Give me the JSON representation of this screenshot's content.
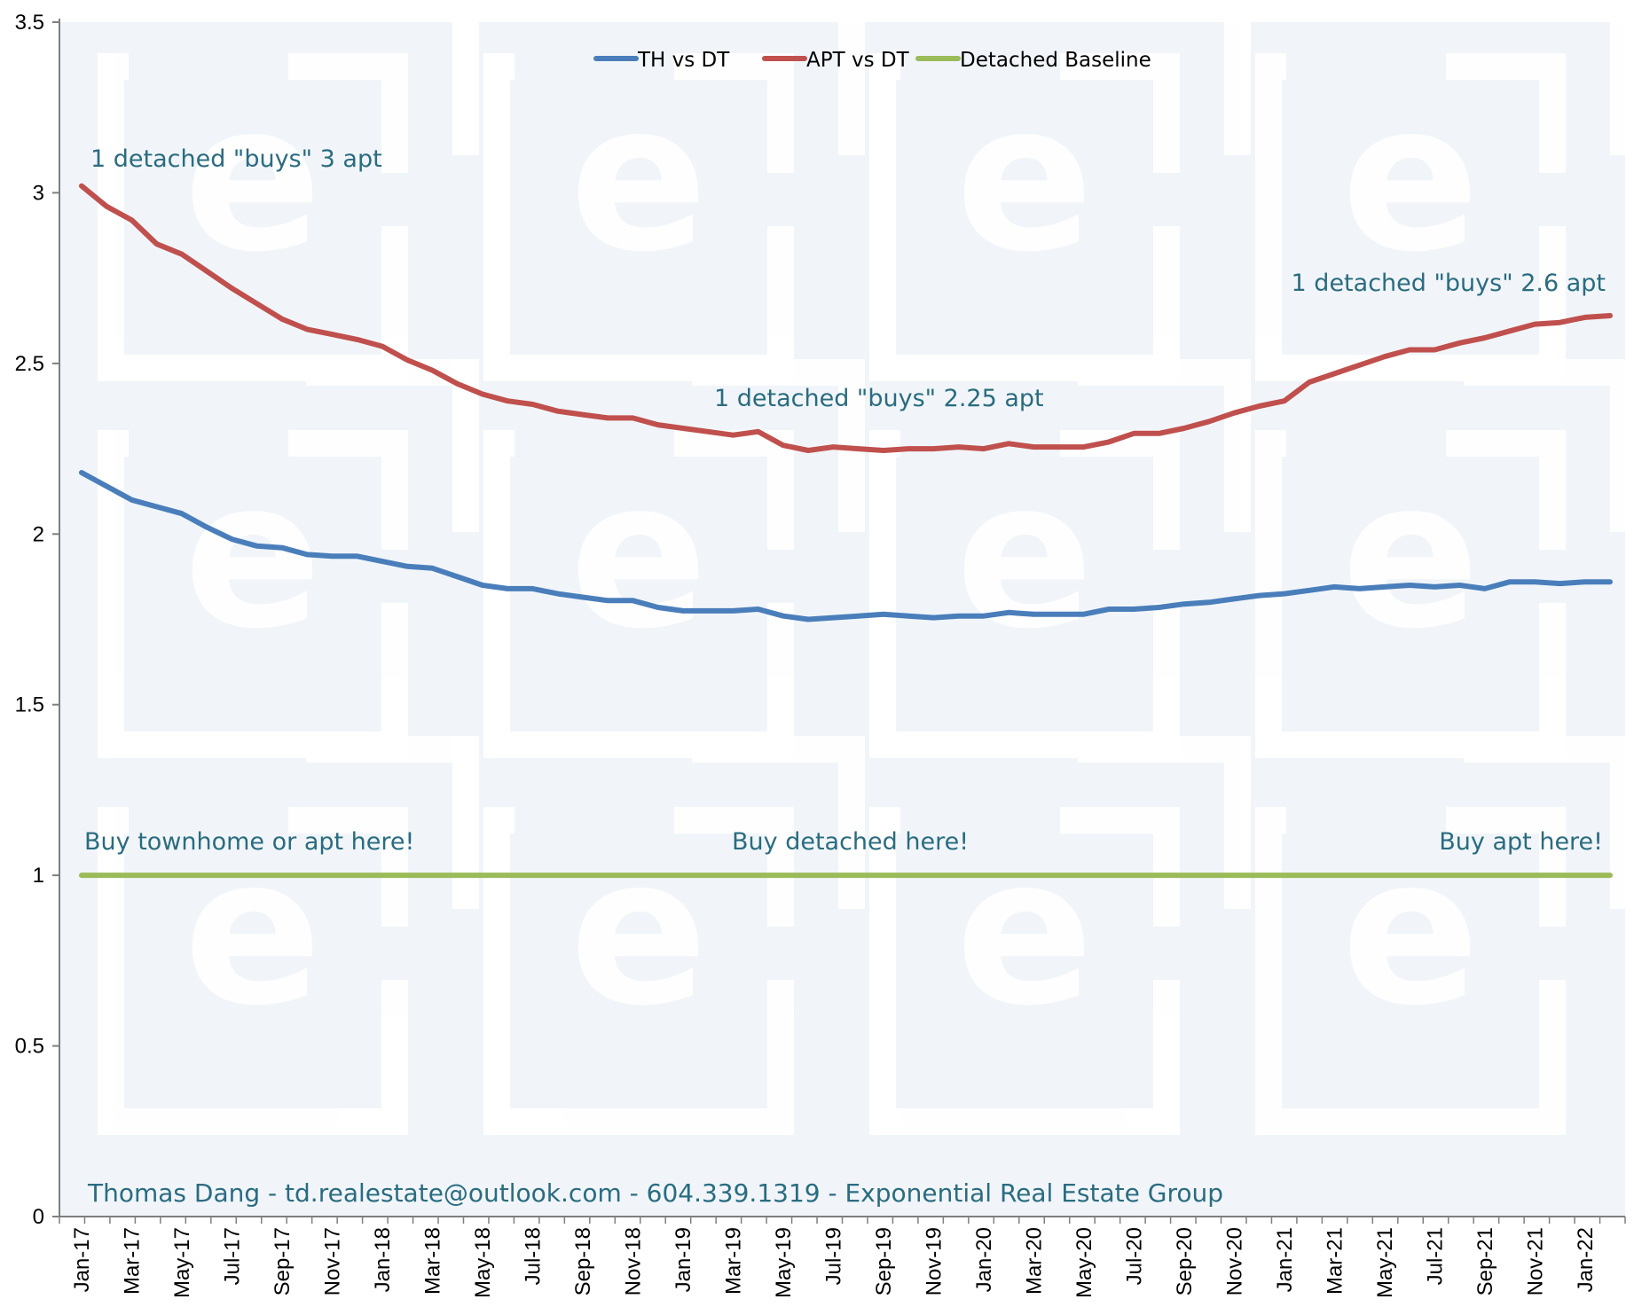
{
  "chart_data": {
    "type": "line",
    "ylim": [
      0,
      3.5
    ],
    "yticks": [
      "0",
      "0.5",
      "1",
      "1.5",
      "2",
      "2.5",
      "3",
      "3.5"
    ],
    "x": [
      "Jan-17",
      "Feb-17",
      "Mar-17",
      "Apr-17",
      "May-17",
      "Jun-17",
      "Jul-17",
      "Aug-17",
      "Sep-17",
      "Oct-17",
      "Nov-17",
      "Dec-17",
      "Jan-18",
      "Feb-18",
      "Mar-18",
      "Apr-18",
      "May-18",
      "Jun-18",
      "Jul-18",
      "Aug-18",
      "Sep-18",
      "Oct-18",
      "Nov-18",
      "Dec-18",
      "Jan-19",
      "Feb-19",
      "Mar-19",
      "Apr-19",
      "May-19",
      "Jun-19",
      "Jul-19",
      "Aug-19",
      "Sep-19",
      "Oct-19",
      "Nov-19",
      "Dec-19",
      "Jan-20",
      "Feb-20",
      "Mar-20",
      "Apr-20",
      "May-20",
      "Jun-20",
      "Jul-20",
      "Aug-20",
      "Sep-20",
      "Oct-20",
      "Nov-20",
      "Dec-20",
      "Jan-21",
      "Feb-21",
      "Mar-21",
      "Apr-21",
      "May-21",
      "Jun-21",
      "Jul-21",
      "Aug-21",
      "Sep-21",
      "Oct-21",
      "Nov-21",
      "Dec-21",
      "Jan-22",
      "Feb-22"
    ],
    "xtick_labels_shown_every": 2,
    "legend_position": "top-center",
    "grid": false,
    "series": [
      {
        "name": "TH vs DT",
        "color": "#4a7ebb",
        "values": [
          2.18,
          2.14,
          2.1,
          2.08,
          2.06,
          2.02,
          1.985,
          1.965,
          1.96,
          1.94,
          1.935,
          1.935,
          1.92,
          1.905,
          1.9,
          1.875,
          1.85,
          1.84,
          1.84,
          1.825,
          1.815,
          1.805,
          1.805,
          1.785,
          1.775,
          1.775,
          1.775,
          1.78,
          1.76,
          1.75,
          1.755,
          1.76,
          1.765,
          1.76,
          1.755,
          1.76,
          1.76,
          1.77,
          1.765,
          1.765,
          1.765,
          1.78,
          1.78,
          1.785,
          1.795,
          1.8,
          1.81,
          1.82,
          1.825,
          1.835,
          1.845,
          1.84,
          1.845,
          1.85,
          1.845,
          1.85,
          1.84,
          1.86,
          1.86,
          1.855,
          1.86,
          1.86
        ]
      },
      {
        "name": "APT vs DT",
        "color": "#c0504d",
        "values": [
          3.02,
          2.96,
          2.92,
          2.85,
          2.82,
          2.77,
          2.72,
          2.675,
          2.63,
          2.6,
          2.585,
          2.57,
          2.55,
          2.51,
          2.48,
          2.44,
          2.41,
          2.39,
          2.38,
          2.36,
          2.35,
          2.34,
          2.34,
          2.32,
          2.31,
          2.3,
          2.29,
          2.3,
          2.26,
          2.245,
          2.255,
          2.25,
          2.245,
          2.25,
          2.25,
          2.255,
          2.25,
          2.265,
          2.255,
          2.255,
          2.255,
          2.27,
          2.295,
          2.295,
          2.31,
          2.33,
          2.355,
          2.375,
          2.39,
          2.445,
          2.47,
          2.495,
          2.52,
          2.54,
          2.54,
          2.56,
          2.575,
          2.595,
          2.615,
          2.62,
          2.635,
          2.64
        ]
      },
      {
        "name": "Detached Baseline",
        "color": "#9bbb59",
        "values": [
          1,
          1,
          1,
          1,
          1,
          1,
          1,
          1,
          1,
          1,
          1,
          1,
          1,
          1,
          1,
          1,
          1,
          1,
          1,
          1,
          1,
          1,
          1,
          1,
          1,
          1,
          1,
          1,
          1,
          1,
          1,
          1,
          1,
          1,
          1,
          1,
          1,
          1,
          1,
          1,
          1,
          1,
          1,
          1,
          1,
          1,
          1,
          1,
          1,
          1,
          1,
          1,
          1,
          1,
          1,
          1,
          1,
          1,
          1,
          1,
          1,
          1
        ]
      }
    ],
    "annotations": [
      "1 detached \"buys\" 3 apt",
      "1 detached \"buys\" 2.25 apt",
      "1 detached \"buys\" 2.6 apt",
      "Buy townhome or apt here!",
      "Buy detached here!",
      "Buy apt here!"
    ],
    "footer": "Thomas Dang - td.realestate@outlook.com - 604.339.1319 - Exponential Real Estate Group"
  },
  "colors": {
    "plot_background": "#f1f5f9",
    "watermark": "#ffffff",
    "annotation_text": "#2a6c80"
  },
  "watermark_icon": "exponential-e-logo-icon"
}
